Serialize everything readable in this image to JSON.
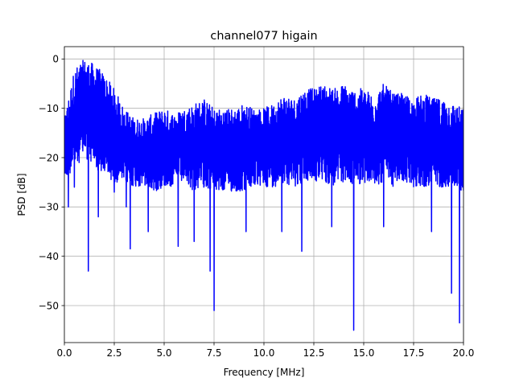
{
  "chart_data": {
    "type": "line",
    "title": "channel077 higain",
    "xlabel": "Frequency [MHz]",
    "ylabel": "PSD [dB]",
    "xlim": [
      0,
      20
    ],
    "ylim": [
      -57.5,
      2.5
    ],
    "xticks": [
      0,
      2.5,
      5,
      7.5,
      10,
      12.5,
      15,
      17.5,
      20
    ],
    "xtick_labels": [
      "0.0",
      "2.5",
      "5.0",
      "7.5",
      "10.0",
      "12.5",
      "15.0",
      "17.5",
      "20.0"
    ],
    "yticks": [
      0,
      -10,
      -20,
      -30,
      -40,
      -50
    ],
    "ytick_labels": [
      "0",
      "−10",
      "−20",
      "−30",
      "−40",
      "−50"
    ],
    "grid": true,
    "legend": "none",
    "series": [
      {
        "color": "#0000ff",
        "envelope_x": [
          0,
          0.5,
          1,
          1.5,
          2,
          2.5,
          3,
          3.5,
          4,
          4.5,
          5,
          5.5,
          6,
          6.5,
          7,
          7.5,
          8,
          8.5,
          9,
          9.5,
          10,
          10.5,
          11,
          11.5,
          12,
          12.5,
          13,
          13.5,
          14,
          14.5,
          15,
          15.5,
          16,
          16.5,
          17,
          17.5,
          18,
          18.5,
          19,
          19.5,
          20
        ],
        "envelope_upper": [
          -12,
          -2,
          0,
          -1,
          -3,
          -6,
          -10,
          -12,
          -12,
          -11,
          -10,
          -11,
          -10,
          -9,
          -8,
          -10,
          -10,
          -10,
          -9,
          -10,
          -10,
          -9,
          -7,
          -8,
          -6,
          -6,
          -5,
          -6,
          -5,
          -6,
          -6,
          -7,
          -5,
          -7,
          -7,
          -8,
          -7,
          -8,
          -8,
          -9,
          -10
        ],
        "envelope_lower": [
          -25,
          -22,
          -20,
          -22,
          -24,
          -25,
          -25,
          -26,
          -26,
          -27,
          -26,
          -26,
          -25,
          -27,
          -26,
          -27,
          -27,
          -27,
          -27,
          -26,
          -26,
          -26,
          -25,
          -26,
          -25,
          -25,
          -25,
          -26,
          -25,
          -26,
          -25,
          -26,
          -25,
          -26,
          -25,
          -26,
          -26,
          -26,
          -26,
          -26,
          -27
        ],
        "dips": [
          {
            "x": 0.2,
            "y": -30
          },
          {
            "x": 0.5,
            "y": -26
          },
          {
            "x": 1.2,
            "y": -43
          },
          {
            "x": 1.7,
            "y": -32
          },
          {
            "x": 2.5,
            "y": -27
          },
          {
            "x": 3.1,
            "y": -30
          },
          {
            "x": 3.3,
            "y": -38.5
          },
          {
            "x": 4.2,
            "y": -35
          },
          {
            "x": 5.7,
            "y": -38
          },
          {
            "x": 6.5,
            "y": -37
          },
          {
            "x": 7.3,
            "y": -43
          },
          {
            "x": 7.5,
            "y": -51
          },
          {
            "x": 9.1,
            "y": -35
          },
          {
            "x": 10.9,
            "y": -35
          },
          {
            "x": 11.9,
            "y": -39
          },
          {
            "x": 13.4,
            "y": -34
          },
          {
            "x": 14.5,
            "y": -55
          },
          {
            "x": 16.0,
            "y": -34
          },
          {
            "x": 18.4,
            "y": -35
          },
          {
            "x": 19.4,
            "y": -47.5
          },
          {
            "x": 19.8,
            "y": -53.5
          }
        ]
      }
    ]
  }
}
